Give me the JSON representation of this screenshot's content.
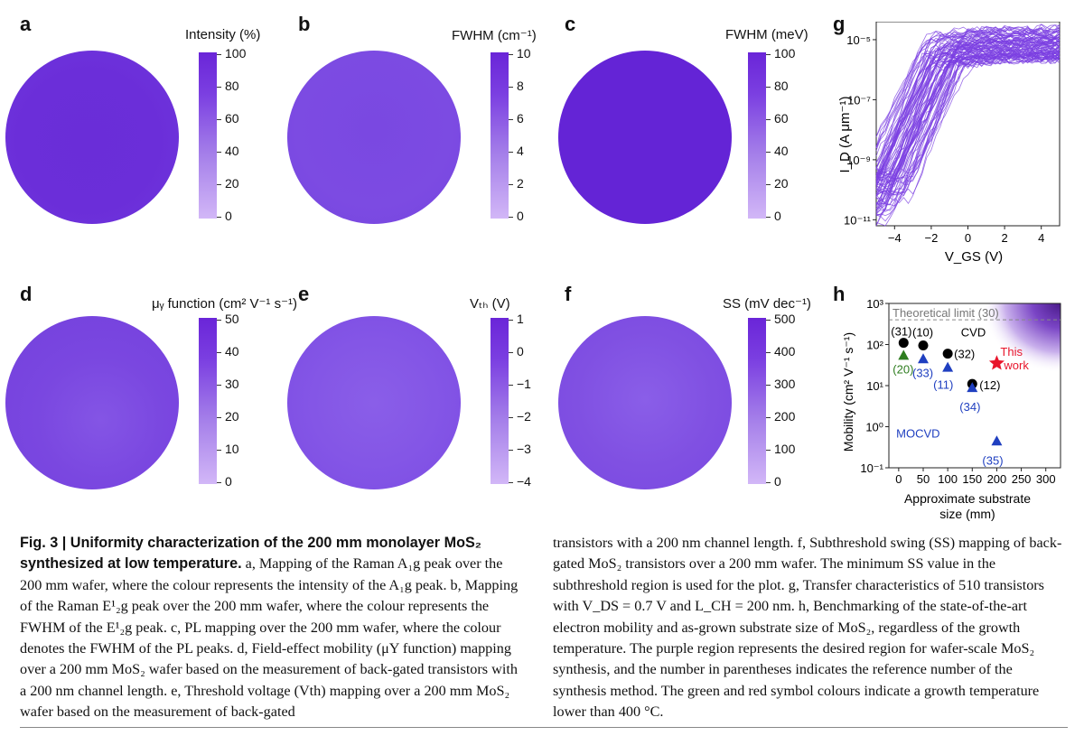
{
  "panels": [
    {
      "id": "a",
      "cbar_title": "Intensity (%)",
      "ticks": [
        "100",
        "80",
        "60",
        "40",
        "20",
        "0"
      ],
      "fill": "#6b2ed9"
    },
    {
      "id": "b",
      "cbar_title": "FWHM (cm⁻¹)",
      "ticks": [
        "10",
        "8",
        "6",
        "4",
        "2",
        "0"
      ],
      "fill": "#7a48e1"
    },
    {
      "id": "c",
      "cbar_title": "FWHM (meV)",
      "ticks": [
        "100",
        "80",
        "60",
        "40",
        "20",
        "0"
      ],
      "fill": "#6424d6"
    },
    {
      "id": "d",
      "cbar_title": "μᵧ function (cm² V⁻¹ s⁻¹)",
      "ticks": [
        "50",
        "40",
        "30",
        "20",
        "10",
        "0"
      ],
      "fill": "#7946e0"
    },
    {
      "id": "e",
      "cbar_title": "Vₜₕ (V)",
      "ticks": [
        "1",
        "0",
        "−1",
        "−2",
        "−3",
        "−4"
      ],
      "fill": "#8456e6"
    },
    {
      "id": "f",
      "cbar_title": "SS (mV dec⁻¹)",
      "ticks": [
        "500",
        "400",
        "300",
        "200",
        "100",
        "0"
      ],
      "fill": "#8050e2"
    }
  ],
  "panel_g": {
    "label": "g",
    "ylabel": "I_D (A μm⁻¹)",
    "xlabel": "V_GS (V)",
    "xticks": [
      "−4",
      "−2",
      "0",
      "2",
      "4"
    ],
    "yticks": [
      "10⁻¹¹",
      "10⁻⁹",
      "10⁻⁷",
      "10⁻⁵"
    ],
    "curve_count": 510,
    "curve_color": "#7b3fe1"
  },
  "chart_data": {
    "type": "scatter",
    "label": "h",
    "xlabel": "Approximate substrate size (mm)",
    "ylabel": "Mobility (cm² V⁻¹ s⁻¹)",
    "xlim": [
      -20,
      330
    ],
    "ylim_log10": [
      -1,
      3
    ],
    "xticks": [
      0,
      50,
      100,
      150,
      200,
      250,
      300
    ],
    "yticks": [
      "10⁻¹",
      "10⁰",
      "10¹",
      "10²",
      "10³"
    ],
    "theoretical_limit": {
      "label": "Theoretical limit (30)",
      "y": 400
    },
    "group_labels": [
      {
        "text": "CVD",
        "color": "#000000"
      },
      {
        "text": "MOCVD",
        "color": "#1f3fc0"
      }
    ],
    "points": [
      {
        "x": 10,
        "y": 110,
        "marker": "circle",
        "color": "#000000",
        "ref": "(31)"
      },
      {
        "x": 50,
        "y": 95,
        "marker": "circle",
        "color": "#000000",
        "ref": "(10)"
      },
      {
        "x": 100,
        "y": 60,
        "marker": "circle",
        "color": "#000000",
        "ref": "(32)"
      },
      {
        "x": 150,
        "y": 11,
        "marker": "circle",
        "color": "#000000",
        "ref": "(12)"
      },
      {
        "x": 10,
        "y": 55,
        "marker": "triangle",
        "color": "#2e7d1f",
        "ref": "(20)"
      },
      {
        "x": 50,
        "y": 45,
        "marker": "triangle",
        "color": "#1f3fc0",
        "ref": "(33)"
      },
      {
        "x": 100,
        "y": 28,
        "marker": "triangle",
        "color": "#1f3fc0",
        "ref": "(11)"
      },
      {
        "x": 150,
        "y": 9,
        "marker": "triangle",
        "color": "#1f3fc0",
        "ref": "(34)"
      },
      {
        "x": 200,
        "y": 0.45,
        "marker": "triangle",
        "color": "#1f3fc0",
        "ref": "(35)"
      },
      {
        "x": 200,
        "y": 35,
        "marker": "star",
        "color": "#e8152b",
        "ref": "This work"
      }
    ]
  },
  "caption": {
    "fig": "Fig. 3 | Uniformity characterization of the 200  mm monolayer MoS₂ synthesized at low temperature.",
    "a": "a, Mapping of the Raman A₁g peak over the 200 mm wafer, where the colour represents the intensity of the A₁g peak.",
    "b": "b, Mapping of the Raman E¹₂g peak over the 200 mm wafer, where the colour represents the FWHM of the E¹₂g peak.",
    "c": "c, PL mapping over the 200 mm wafer, where the colour denotes the FWHM of the PL peaks.",
    "d": "d, Field-effect mobility (μY function) mapping over a 200 mm MoS₂ wafer based on the measurement of back-gated transistors with a 200 nm channel length.",
    "e": "e, Threshold voltage (Vth) mapping over a 200 mm MoS₂ wafer based on the measurement of back-gated",
    "col2": "transistors with a 200 nm channel length. f, Subthreshold swing (SS) mapping of back-gated MoS₂ transistors over a 200 mm wafer. The minimum SS value in the subthreshold region is used for the plot. g, Transfer characteristics of 510 transistors with V_DS = 0.7 V and L_CH = 200 nm. h, Benchmarking of the state-of-the-art electron mobility and as-grown substrate size of MoS₂, regardless of the growth temperature. The purple region represents the desired region for wafer-scale MoS₂ synthesis, and the number in parentheses indicates the reference number of the synthesis method. The green and red symbol colours indicate a growth temperature lower than 400 °C."
  }
}
